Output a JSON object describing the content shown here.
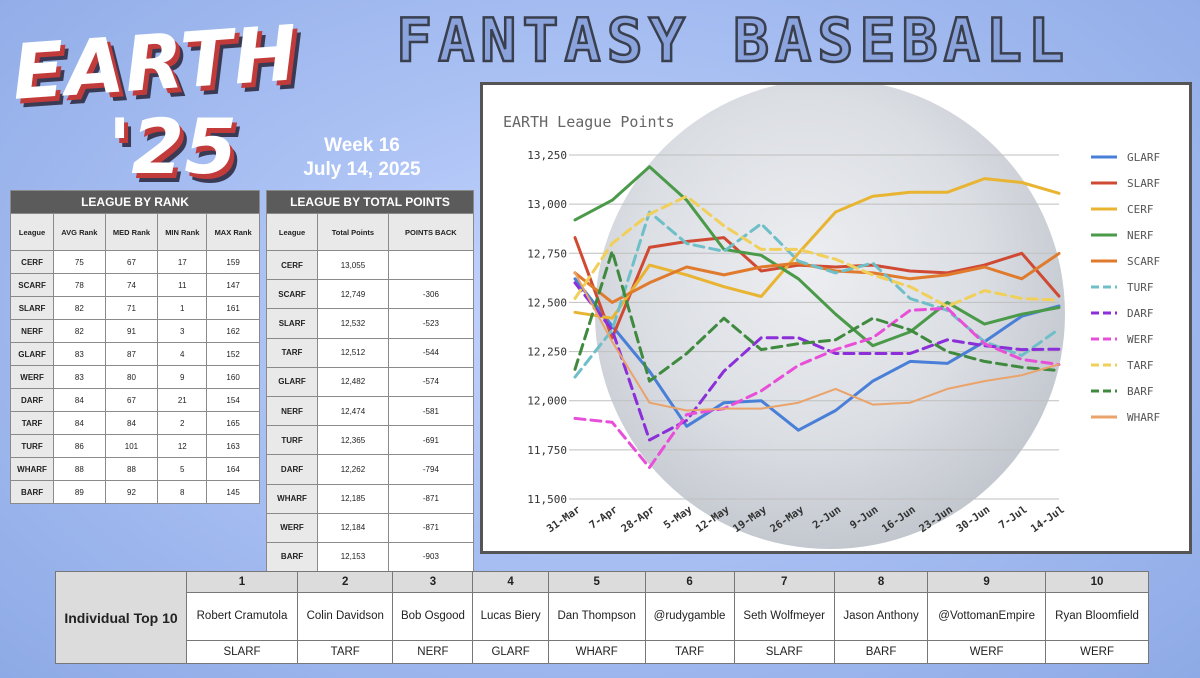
{
  "logo": {
    "line1": "EARTH",
    "line2": "'25"
  },
  "title": "FANTASY BASEBALL",
  "week": {
    "label": "Week 16",
    "date": "July 14, 2025"
  },
  "rank_table": {
    "title": "LEAGUE BY RANK",
    "columns": [
      "League",
      "AVG Rank",
      "MED Rank",
      "MIN Rank",
      "MAX Rank"
    ],
    "rows": [
      [
        "CERF",
        "75",
        "67",
        "17",
        "159"
      ],
      [
        "SCARF",
        "78",
        "74",
        "11",
        "147"
      ],
      [
        "SLARF",
        "82",
        "71",
        "1",
        "161"
      ],
      [
        "NERF",
        "82",
        "91",
        "3",
        "162"
      ],
      [
        "GLARF",
        "83",
        "87",
        "4",
        "152"
      ],
      [
        "WERF",
        "83",
        "80",
        "9",
        "160"
      ],
      [
        "DARF",
        "84",
        "67",
        "21",
        "154"
      ],
      [
        "TARF",
        "84",
        "84",
        "2",
        "165"
      ],
      [
        "TURF",
        "86",
        "101",
        "12",
        "163"
      ],
      [
        "WHARF",
        "88",
        "88",
        "5",
        "164"
      ],
      [
        "BARF",
        "89",
        "92",
        "8",
        "145"
      ]
    ]
  },
  "points_table": {
    "title": "LEAGUE BY TOTAL POINTS",
    "columns": [
      "League",
      "Total Points",
      "POINTS BACK"
    ],
    "rows": [
      [
        "CERF",
        "13,055",
        ""
      ],
      [
        "SCARF",
        "12,749",
        "-306"
      ],
      [
        "SLARF",
        "12,532",
        "-523"
      ],
      [
        "TARF",
        "12,512",
        "-544"
      ],
      [
        "GLARF",
        "12,482",
        "-574"
      ],
      [
        "NERF",
        "12,474",
        "-581"
      ],
      [
        "TURF",
        "12,365",
        "-691"
      ],
      [
        "DARF",
        "12,262",
        "-794"
      ],
      [
        "WHARF",
        "12,185",
        "-871"
      ],
      [
        "WERF",
        "12,184",
        "-871"
      ],
      [
        "BARF",
        "12,153",
        "-903"
      ]
    ]
  },
  "chart_data": {
    "type": "line",
    "title": "EARTH League Points",
    "x": [
      "31-Mar",
      "7-Apr",
      "28-Apr",
      "5-May",
      "12-May",
      "19-May",
      "26-May",
      "2-Jun",
      "9-Jun",
      "16-Jun",
      "23-Jun",
      "30-Jun",
      "7-Jul",
      "14-Jul"
    ],
    "ylim": [
      11500,
      13250
    ],
    "yticks": [
      11500,
      11750,
      12000,
      12250,
      12500,
      12750,
      13000,
      13250
    ],
    "ytick_labels": [
      "11,500",
      "11,750",
      "12,000",
      "12,250",
      "12,500",
      "12,750",
      "13,000",
      "13,250"
    ],
    "legend_position": "right",
    "grid": true,
    "series": [
      {
        "name": "GLARF",
        "color": "#4a7fd8",
        "dash": false,
        "values": [
          12620,
          12380,
          12150,
          11870,
          11990,
          12000,
          11850,
          11950,
          12100,
          12200,
          12190,
          12300,
          12430,
          12482
        ]
      },
      {
        "name": "SLARF",
        "color": "#d04a33",
        "dash": false,
        "values": [
          12830,
          12320,
          12780,
          12810,
          12830,
          12660,
          12690,
          12680,
          12690,
          12660,
          12650,
          12690,
          12750,
          12532
        ]
      },
      {
        "name": "CERF",
        "color": "#e8b432",
        "dash": false,
        "values": [
          12450,
          12420,
          12690,
          12640,
          12580,
          12530,
          12750,
          12960,
          13040,
          13060,
          13060,
          13130,
          13110,
          13055
        ]
      },
      {
        "name": "NERF",
        "color": "#4a9a4a",
        "dash": false,
        "values": [
          12920,
          13020,
          13190,
          13020,
          12770,
          12740,
          12620,
          12440,
          12280,
          12350,
          12500,
          12390,
          12440,
          12474
        ]
      },
      {
        "name": "SCARF",
        "color": "#e07a2d",
        "dash": false,
        "values": [
          12650,
          12500,
          12600,
          12680,
          12640,
          12680,
          12700,
          12660,
          12650,
          12620,
          12640,
          12680,
          12620,
          12749
        ]
      },
      {
        "name": "TURF",
        "color": "#6fbfc8",
        "dash": true,
        "values": [
          12120,
          12360,
          12960,
          12800,
          12760,
          12900,
          12710,
          12650,
          12700,
          12520,
          12460,
          12300,
          12230,
          12365
        ]
      },
      {
        "name": "DARF",
        "color": "#8b2fd8",
        "dash": true,
        "values": [
          12600,
          12360,
          11800,
          11900,
          12150,
          12320,
          12320,
          12240,
          12240,
          12240,
          12310,
          12280,
          12260,
          12262
        ]
      },
      {
        "name": "WERF",
        "color": "#e84fd8",
        "dash": true,
        "values": [
          11910,
          11890,
          11660,
          11930,
          11960,
          12050,
          12180,
          12260,
          12320,
          12460,
          12470,
          12290,
          12210,
          12184
        ]
      },
      {
        "name": "TARF",
        "color": "#f0cf5a",
        "dash": true,
        "values": [
          12520,
          12800,
          12950,
          13040,
          12890,
          12770,
          12770,
          12720,
          12640,
          12580,
          12480,
          12560,
          12520,
          12512
        ]
      },
      {
        "name": "BARF",
        "color": "#3f8a3f",
        "dash": true,
        "values": [
          12160,
          12760,
          12100,
          12240,
          12420,
          12260,
          12290,
          12310,
          12420,
          12360,
          12250,
          12200,
          12170,
          12153
        ]
      },
      {
        "name": "WHARF",
        "color": "#eaa36a",
        "dash": false,
        "values": [
          12650,
          12300,
          11990,
          11950,
          11960,
          11960,
          11990,
          12060,
          11980,
          11990,
          12060,
          12100,
          12130,
          12185
        ]
      }
    ]
  },
  "top10": {
    "title": "Individual Top 10",
    "ranks": [
      "1",
      "2",
      "3",
      "4",
      "5",
      "6",
      "7",
      "8",
      "9",
      "10"
    ],
    "names": [
      "Robert Cramutola",
      "Colin Davidson",
      "Bob Osgood",
      "Lucas Biery",
      "Dan Thompson",
      "@rudygamble",
      "Seth Wolfmeyer",
      "Jason Anthony",
      "@VottomanEmpire",
      "Ryan Bloomfield"
    ],
    "leagues": [
      "SLARF",
      "TARF",
      "NERF",
      "GLARF",
      "WHARF",
      "TARF",
      "SLARF",
      "BARF",
      "WERF",
      "WERF"
    ]
  }
}
